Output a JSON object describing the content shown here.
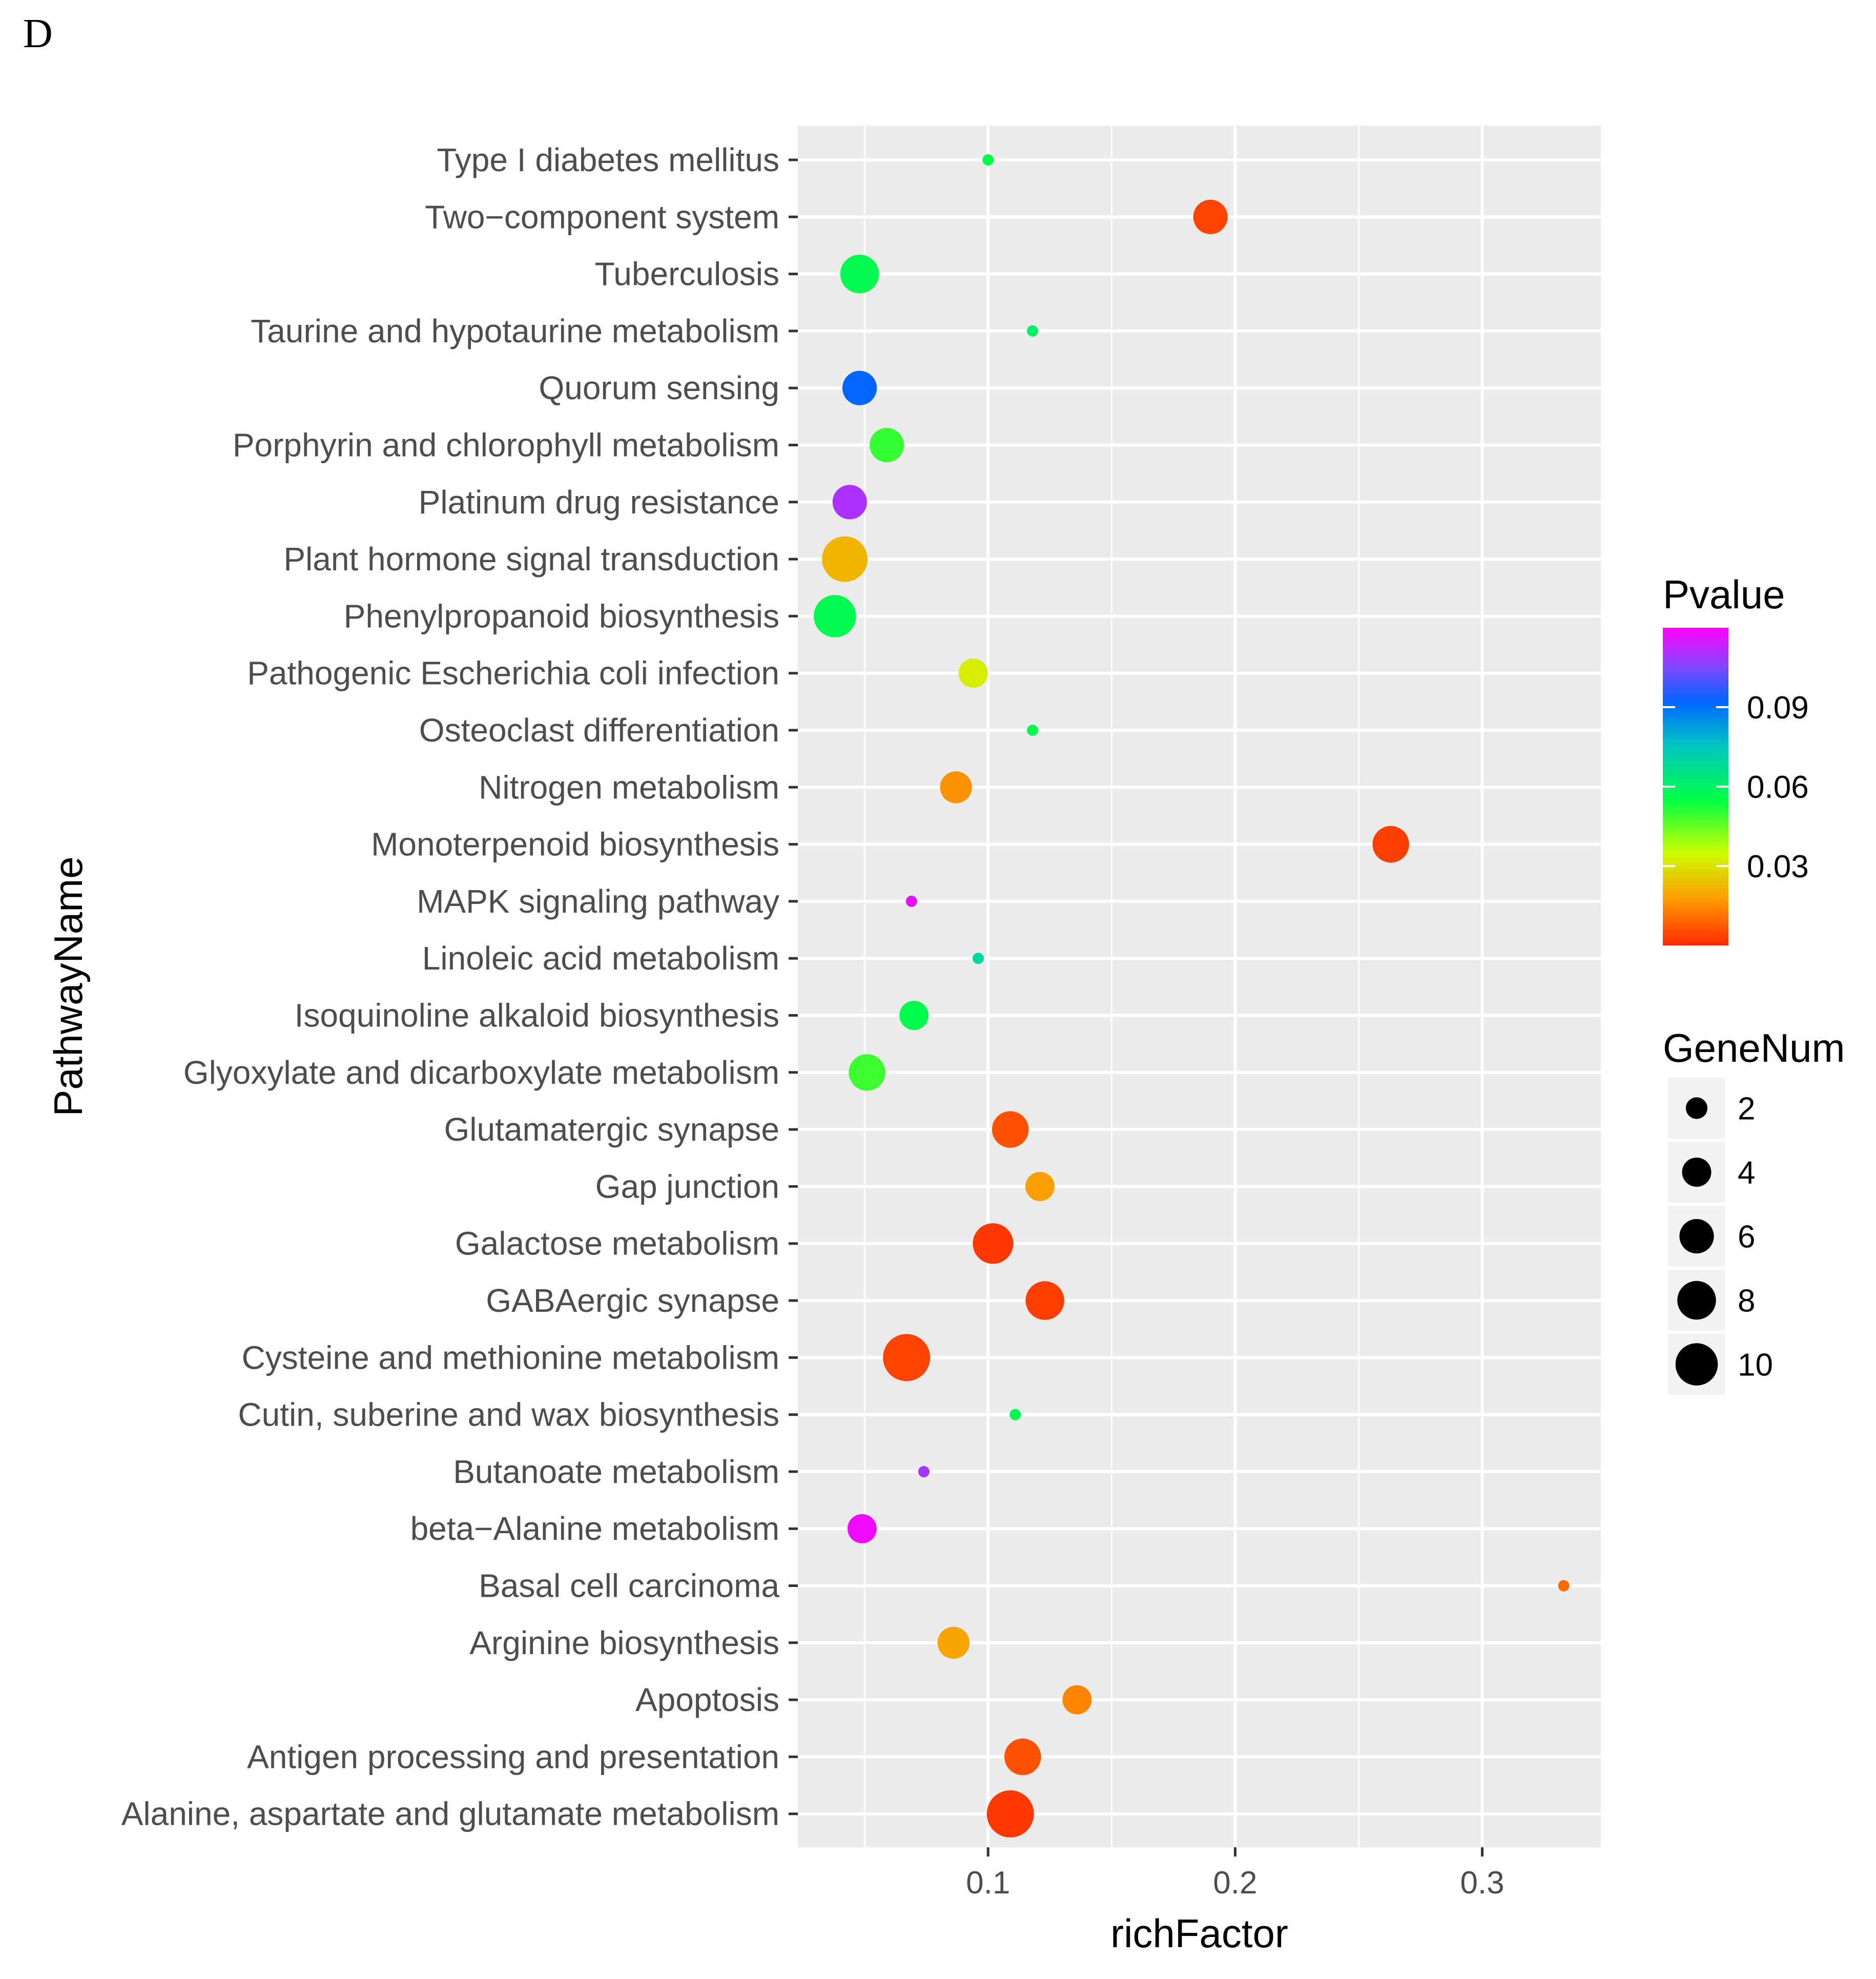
{
  "panel_label": "D",
  "chart_data": {
    "type": "scatter",
    "xlabel": "richFactor",
    "ylabel": "PathwayName",
    "xlim": [
      0.023,
      0.348
    ],
    "x_ticks": [
      {
        "value": 0.1,
        "label": "0.1"
      },
      {
        "value": 0.2,
        "label": "0.2"
      },
      {
        "value": 0.3,
        "label": "0.3"
      }
    ],
    "grid": true,
    "points": [
      {
        "pathway": "Type I diabetes mellitus",
        "richFactor": 0.1,
        "genes": 1,
        "pvalue": 0.055
      },
      {
        "pathway": "Two−component system",
        "richFactor": 0.19,
        "genes": 6,
        "pvalue": 0.004
      },
      {
        "pathway": "Tuberculosis",
        "richFactor": 0.048,
        "genes": 8,
        "pvalue": 0.057
      },
      {
        "pathway": "Taurine and hypotaurine metabolism",
        "richFactor": 0.118,
        "genes": 1,
        "pvalue": 0.06
      },
      {
        "pathway": "Quorum sensing",
        "richFactor": 0.048,
        "genes": 6,
        "pvalue": 0.092
      },
      {
        "pathway": "Porphyrin and chlorophyll metabolism",
        "richFactor": 0.059,
        "genes": 6,
        "pvalue": 0.05
      },
      {
        "pathway": "Platinum drug resistance",
        "richFactor": 0.044,
        "genes": 6,
        "pvalue": 0.11
      },
      {
        "pathway": "Plant hormone signal transduction",
        "richFactor": 0.042,
        "genes": 12,
        "pvalue": 0.022
      },
      {
        "pathway": "Phenylpropanoid biosynthesis",
        "richFactor": 0.038,
        "genes": 10,
        "pvalue": 0.057
      },
      {
        "pathway": "Pathogenic Escherichia coli infection",
        "richFactor": 0.094,
        "genes": 4,
        "pvalue": 0.032
      },
      {
        "pathway": "Osteoclast differentiation",
        "richFactor": 0.118,
        "genes": 1,
        "pvalue": 0.057
      },
      {
        "pathway": "Nitrogen metabolism",
        "richFactor": 0.087,
        "genes": 5,
        "pvalue": 0.016
      },
      {
        "pathway": "Monoterpenoid biosynthesis",
        "richFactor": 0.263,
        "genes": 7,
        "pvalue": 0.003
      },
      {
        "pathway": "MAPK signaling pathway",
        "richFactor": 0.069,
        "genes": 1,
        "pvalue": 0.117
      },
      {
        "pathway": "Linoleic acid metabolism",
        "richFactor": 0.096,
        "genes": 1,
        "pvalue": 0.07
      },
      {
        "pathway": "Isoquinoline alkaloid biosynthesis",
        "richFactor": 0.07,
        "genes": 4,
        "pvalue": 0.056
      },
      {
        "pathway": "Glyoxylate and dicarboxylate metabolism",
        "richFactor": 0.051,
        "genes": 7,
        "pvalue": 0.049
      },
      {
        "pathway": "Glutamatergic synapse",
        "richFactor": 0.109,
        "genes": 7,
        "pvalue": 0.006
      },
      {
        "pathway": "Gap junction",
        "richFactor": 0.121,
        "genes": 4,
        "pvalue": 0.018
      },
      {
        "pathway": "Galactose metabolism",
        "richFactor": 0.102,
        "genes": 9,
        "pvalue": 0.002
      },
      {
        "pathway": "GABAergic synapse",
        "richFactor": 0.123,
        "genes": 8,
        "pvalue": 0.003
      },
      {
        "pathway": "Cysteine and methionine metabolism",
        "richFactor": 0.067,
        "genes": 13,
        "pvalue": 0.004
      },
      {
        "pathway": "Cutin, suberine and wax biosynthesis",
        "richFactor": 0.111,
        "genes": 1,
        "pvalue": 0.057
      },
      {
        "pathway": "Butanoate metabolism",
        "richFactor": 0.074,
        "genes": 1,
        "pvalue": 0.109
      },
      {
        "pathway": "beta−Alanine metabolism",
        "richFactor": 0.049,
        "genes": 4,
        "pvalue": 0.118
      },
      {
        "pathway": "Basal cell carcinoma",
        "richFactor": 0.333,
        "genes": 1,
        "pvalue": 0.01
      },
      {
        "pathway": "Arginine biosynthesis",
        "richFactor": 0.086,
        "genes": 5,
        "pvalue": 0.019
      },
      {
        "pathway": "Apoptosis",
        "richFactor": 0.136,
        "genes": 4,
        "pvalue": 0.014
      },
      {
        "pathway": "Antigen processing and presentation",
        "richFactor": 0.114,
        "genes": 7,
        "pvalue": 0.006
      },
      {
        "pathway": "Alanine, aspartate and glutamate metabolism",
        "richFactor": 0.109,
        "genes": 13,
        "pvalue": 0.002
      }
    ],
    "color_legend": {
      "title": "Pvalue",
      "range": [
        0.0,
        0.12
      ],
      "ticks": [
        {
          "value": 0.09,
          "label": "0.09"
        },
        {
          "value": 0.06,
          "label": "0.06"
        },
        {
          "value": 0.03,
          "label": "0.03"
        }
      ],
      "stops": [
        {
          "value": 0.0,
          "color": "#ff2a00"
        },
        {
          "value": 0.017,
          "color": "#ff9900"
        },
        {
          "value": 0.035,
          "color": "#ccff00"
        },
        {
          "value": 0.055,
          "color": "#00ff44"
        },
        {
          "value": 0.075,
          "color": "#00c8c0"
        },
        {
          "value": 0.092,
          "color": "#0066ff"
        },
        {
          "value": 0.106,
          "color": "#8844ff"
        },
        {
          "value": 0.12,
          "color": "#ff00ff"
        }
      ]
    },
    "size_legend": {
      "title": "GeneNum",
      "entries": [
        {
          "value": 2,
          "label": "2"
        },
        {
          "value": 4,
          "label": "4"
        },
        {
          "value": 6,
          "label": "6"
        },
        {
          "value": 8,
          "label": "8"
        },
        {
          "value": 10,
          "label": "10"
        }
      ]
    }
  }
}
